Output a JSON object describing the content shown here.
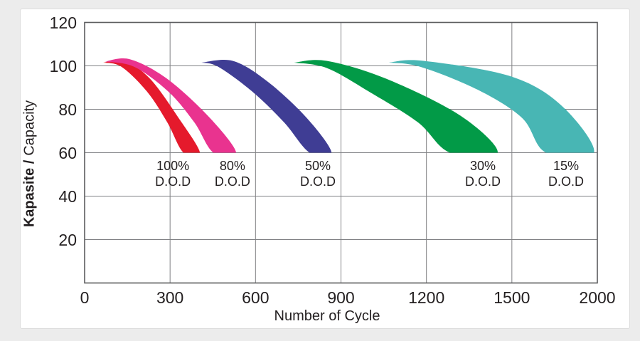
{
  "frame": {
    "background_color": "#ececec",
    "panel_color": "#ffffff"
  },
  "chart_data": {
    "type": "area",
    "title": "",
    "xlabel": "Number of Cycle",
    "ylabel": {
      "bold": "Kapasite /",
      "regular": "Capacity"
    },
    "x_tick_labels": [
      "0",
      "300",
      "600",
      "900",
      "1200",
      "1500",
      "2000"
    ],
    "x_tick_values": [
      0,
      300,
      600,
      900,
      1200,
      1500,
      2000
    ],
    "y_tick_values": [
      20,
      40,
      60,
      80,
      100,
      120
    ],
    "ylim": [
      0,
      120
    ],
    "xlim": [
      0,
      2000
    ],
    "grid": true,
    "grid_color": "#808184",
    "border_color": "#5b5c5e",
    "text_color": "#231f20",
    "axis_note": "gridlines equally spaced; last interval spans 1500 to 2000",
    "capacity_cutoff": 60,
    "series": [
      {
        "name": "100% D.O.D",
        "label_lines": [
          "100%",
          "D.O.D"
        ],
        "label_cycle": 310,
        "color": "#e51a2c",
        "upper_edge_cycles_capacity": [
          [
            65,
            101.5
          ],
          [
            140,
            102.3
          ],
          [
            230,
            94
          ],
          [
            330,
            76
          ],
          [
            405,
            60
          ]
        ],
        "lower_edge_cycles_capacity": [
          [
            347,
            60
          ],
          [
            290,
            74
          ],
          [
            220,
            88
          ],
          [
            130,
            99.5
          ],
          [
            65,
            101.5
          ]
        ]
      },
      {
        "name": "80% D.O.D",
        "label_lines": [
          "80%",
          "D.O.D"
        ],
        "label_cycle": 519,
        "color": "#e9338f",
        "upper_edge_cycles_capacity": [
          [
            72,
            102
          ],
          [
            160,
            103
          ],
          [
            290,
            94
          ],
          [
            440,
            76
          ],
          [
            532,
            60
          ]
        ],
        "lower_edge_cycles_capacity": [
          [
            452,
            60
          ],
          [
            385,
            74
          ],
          [
            295,
            88
          ],
          [
            175,
            99.5
          ],
          [
            72,
            102
          ]
        ]
      },
      {
        "name": "50% D.O.D",
        "label_lines": [
          "50%",
          "D.O.D"
        ],
        "label_cycle": 819,
        "color": "#3f3d94",
        "upper_edge_cycles_capacity": [
          [
            410,
            101.5
          ],
          [
            520,
            102.3
          ],
          [
            640,
            93
          ],
          [
            780,
            76
          ],
          [
            867,
            60
          ]
        ],
        "lower_edge_cycles_capacity": [
          [
            790,
            60
          ],
          [
            700,
            74
          ],
          [
            590,
            88
          ],
          [
            470,
            99.5
          ],
          [
            410,
            101.5
          ]
        ]
      },
      {
        "name": "30% D.O.D",
        "label_lines": [
          "30%",
          "D.O.D"
        ],
        "label_cycle": 1398,
        "color": "#029a47",
        "upper_edge_cycles_capacity": [
          [
            735,
            101.5
          ],
          [
            850,
            102.3
          ],
          [
            1060,
            94
          ],
          [
            1320,
            77
          ],
          [
            1450,
            60
          ]
        ],
        "lower_edge_cycles_capacity": [
          [
            1283,
            60
          ],
          [
            1170,
            74
          ],
          [
            1000,
            88
          ],
          [
            850,
            99
          ],
          [
            735,
            101.5
          ]
        ]
      },
      {
        "name": "15% D.O.D",
        "label_lines": [
          "15%",
          "D.O.D"
        ],
        "label_cycle": 1817,
        "color": "#48b6b4",
        "upper_edge_cycles_capacity": [
          [
            1068,
            101.5
          ],
          [
            1190,
            102.3
          ],
          [
            1500,
            95
          ],
          [
            1800,
            81
          ],
          [
            1980,
            60
          ]
        ],
        "lower_edge_cycles_capacity": [
          [
            1700,
            60
          ],
          [
            1560,
            76
          ],
          [
            1380,
            89
          ],
          [
            1180,
            99.5
          ],
          [
            1068,
            101.5
          ]
        ]
      }
    ]
  }
}
